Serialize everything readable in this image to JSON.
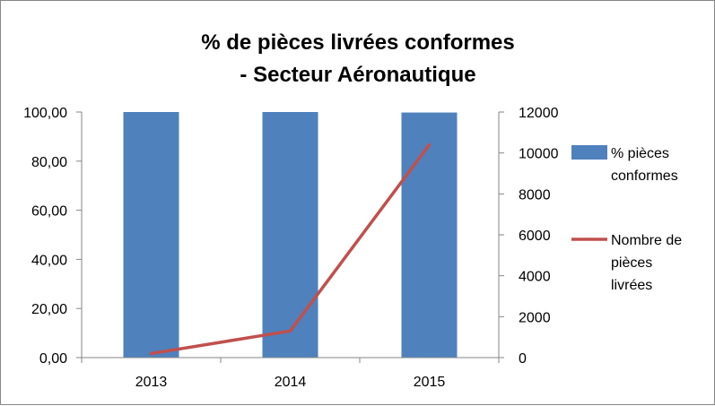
{
  "chart_data": {
    "type": "bar",
    "title_lines": [
      "% de pièces livrées conformes",
      "- Secteur Aéronautique"
    ],
    "categories": [
      "2013",
      "2014",
      "2015"
    ],
    "series": [
      {
        "name_lines": [
          "% pièces",
          "conformes"
        ],
        "type": "bar",
        "axis": "left",
        "color": "#4F81BD",
        "values": [
          100,
          100,
          99.8
        ]
      },
      {
        "name_lines": [
          "Nombre de",
          "pièces",
          "livrées"
        ],
        "type": "line",
        "axis": "right",
        "color": "#C0504D",
        "values": [
          200,
          1300,
          10400
        ]
      }
    ],
    "y_left": {
      "min": 0,
      "max": 100,
      "ticks": [
        0,
        20,
        40,
        60,
        80,
        100
      ],
      "tick_labels": [
        "0,00",
        "20,00",
        "40,00",
        "60,00",
        "80,00",
        "100,00"
      ]
    },
    "y_right": {
      "min": 0,
      "max": 12000,
      "ticks": [
        0,
        2000,
        4000,
        6000,
        8000,
        10000,
        12000
      ],
      "tick_labels": [
        "0",
        "2000",
        "4000",
        "6000",
        "8000",
        "10000",
        "12000"
      ]
    },
    "grid": false,
    "legend_position": "right",
    "axis_color": "#868686"
  }
}
